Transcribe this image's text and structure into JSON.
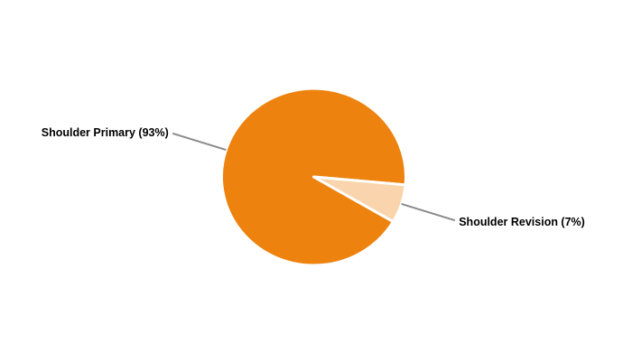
{
  "chart_data": {
    "type": "pie",
    "categories": [
      "Shoulder Primary",
      "Shoulder Revision"
    ],
    "values": [
      93,
      7
    ],
    "unit": "%",
    "slices": [
      {
        "label": "Shoulder Primary",
        "value": 93,
        "display": "Shoulder Primary (93%)",
        "color": "#ED820E"
      },
      {
        "label": "Shoulder Revision",
        "value": 7,
        "display": "Shoulder Revision (7%)",
        "color": "#FAD4AC"
      }
    ],
    "start_angle_deg": -5.2,
    "direction": "counterclockwise",
    "legend_position": "none",
    "label_style": "outside-with-leader-lines",
    "colors": {
      "background": "#FFFFFF",
      "slice_border": "#FFFFFF",
      "leader_line": "#8A8A8A",
      "label_text": "#000000"
    }
  }
}
